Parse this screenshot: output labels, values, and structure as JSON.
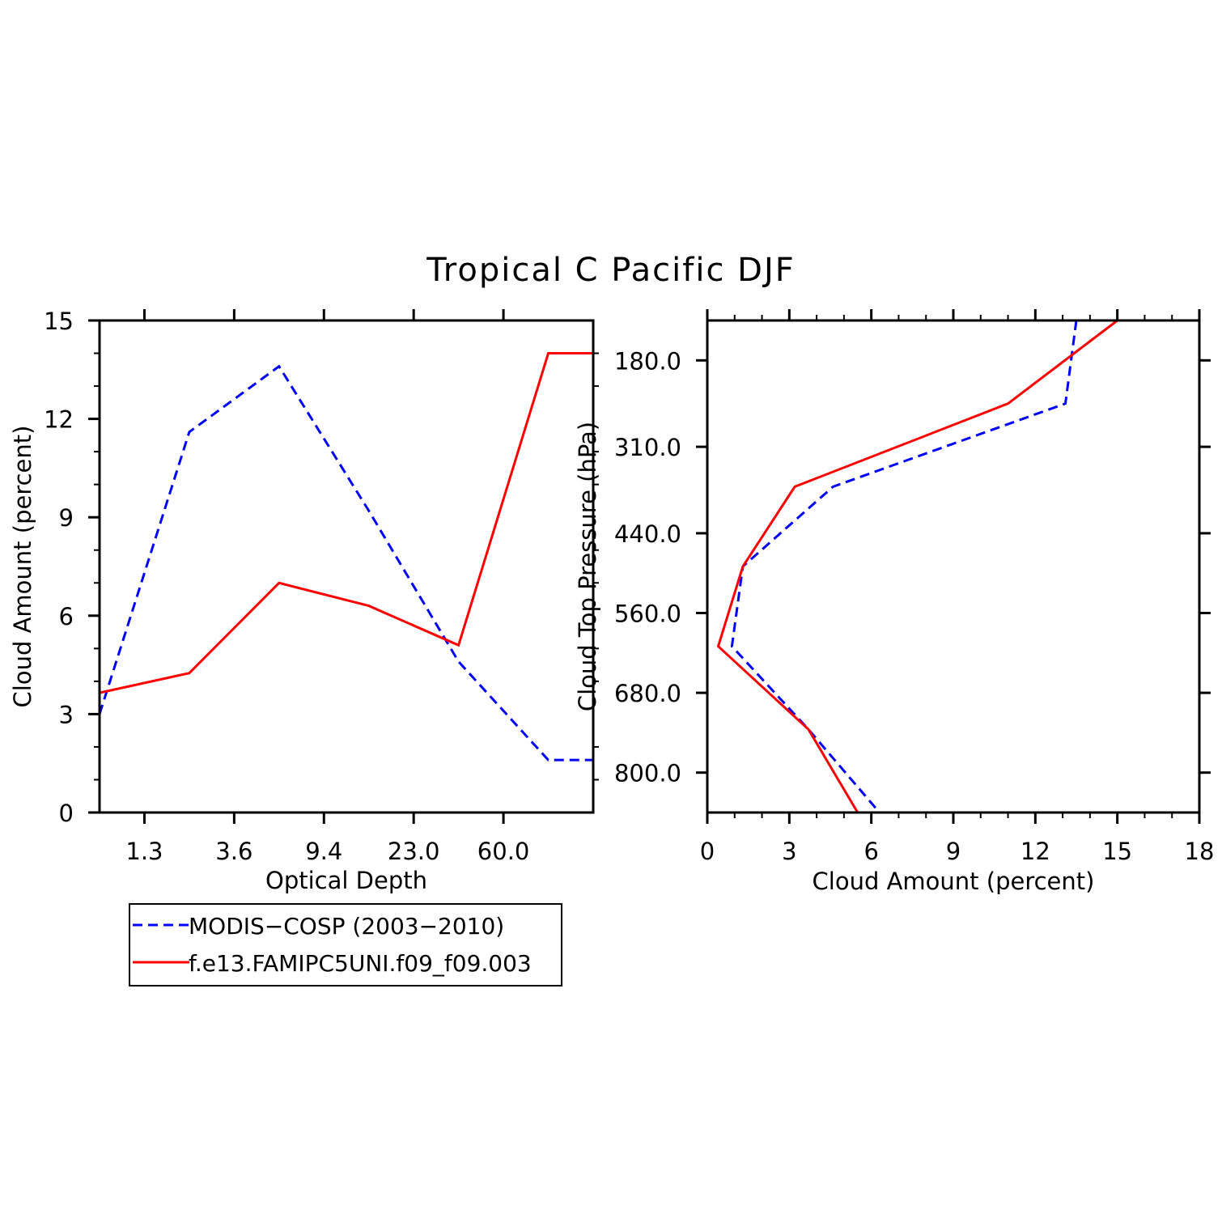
{
  "title": "Tropical C Pacific DJF",
  "colors": {
    "modis": "#0000ff",
    "model": "#ff0000",
    "axis": "#000000"
  },
  "legend": {
    "items": [
      {
        "label": "MODIS−COSP (2003−2010)",
        "style": "dashed",
        "color": "#0000ff"
      },
      {
        "label": "f.e13.FAMIPC5UNI.f09_f09.003",
        "style": "solid",
        "color": "#ff0000"
      }
    ]
  },
  "chart_data": [
    {
      "type": "line",
      "title": "Tropical C Pacific DJF",
      "xlabel": "Optical Depth",
      "ylabel": "Cloud Amount (percent)",
      "x_bins": [
        1,
        2,
        3,
        4,
        5,
        6
      ],
      "xlim": [
        0.5,
        6.0
      ],
      "xtick_positions": [
        1.0,
        2.0,
        3.0,
        4.0,
        5.0
      ],
      "xtick_labels": [
        "1.3",
        "3.6",
        "9.4",
        "23.0",
        "60.0"
      ],
      "ylim": [
        0,
        15
      ],
      "ytick_values": [
        0,
        3,
        6,
        9,
        12,
        15
      ],
      "ytick_labels": [
        "0",
        "3",
        "6",
        "9",
        "12",
        "15"
      ],
      "series": [
        {
          "name": "MODIS−COSP (2003−2010)",
          "x": [
            0.5,
            1.5,
            2.5,
            3.5,
            4.5,
            5.5,
            6.0
          ],
          "values": [
            3.0,
            11.6,
            13.6,
            9.2,
            4.6,
            1.6,
            1.6
          ]
        },
        {
          "name": "f.e13.FAMIPC5UNI.f09_f09.003",
          "x": [
            0.5,
            1.5,
            2.5,
            3.5,
            4.5,
            5.5,
            6.0
          ],
          "values": [
            3.65,
            4.25,
            7.0,
            6.3,
            5.1,
            14.0,
            14.0
          ]
        }
      ]
    },
    {
      "type": "line",
      "xlabel": "Cloud Amount (percent)",
      "ylabel": "Cloud Top Pressure (hPa)",
      "xlim": [
        0,
        18
      ],
      "xtick_values": [
        0,
        3,
        6,
        9,
        12,
        15,
        18
      ],
      "xtick_labels": [
        "0",
        "3",
        "6",
        "9",
        "12",
        "15",
        "18"
      ],
      "ylim_top_to_bottom": [
        120,
        860
      ],
      "ytick_values": [
        180,
        310,
        440,
        560,
        680,
        800
      ],
      "ytick_labels": [
        "180.0",
        "310.0",
        "440.0",
        "560.0",
        "680.0",
        "800.0"
      ],
      "series": [
        {
          "name": "MODIS−COSP (2003−2010)",
          "pressure": [
            120,
            245,
            370,
            490,
            610,
            735,
            860
          ],
          "values": [
            13.5,
            13.1,
            4.6,
            1.3,
            0.9,
            3.7,
            6.3
          ]
        },
        {
          "name": "f.e13.FAMIPC5UNI.f09_f09.003",
          "pressure": [
            120,
            245,
            370,
            490,
            610,
            735,
            860
          ],
          "values": [
            15.0,
            11.0,
            3.2,
            1.3,
            0.4,
            3.7,
            5.5
          ]
        }
      ]
    }
  ]
}
